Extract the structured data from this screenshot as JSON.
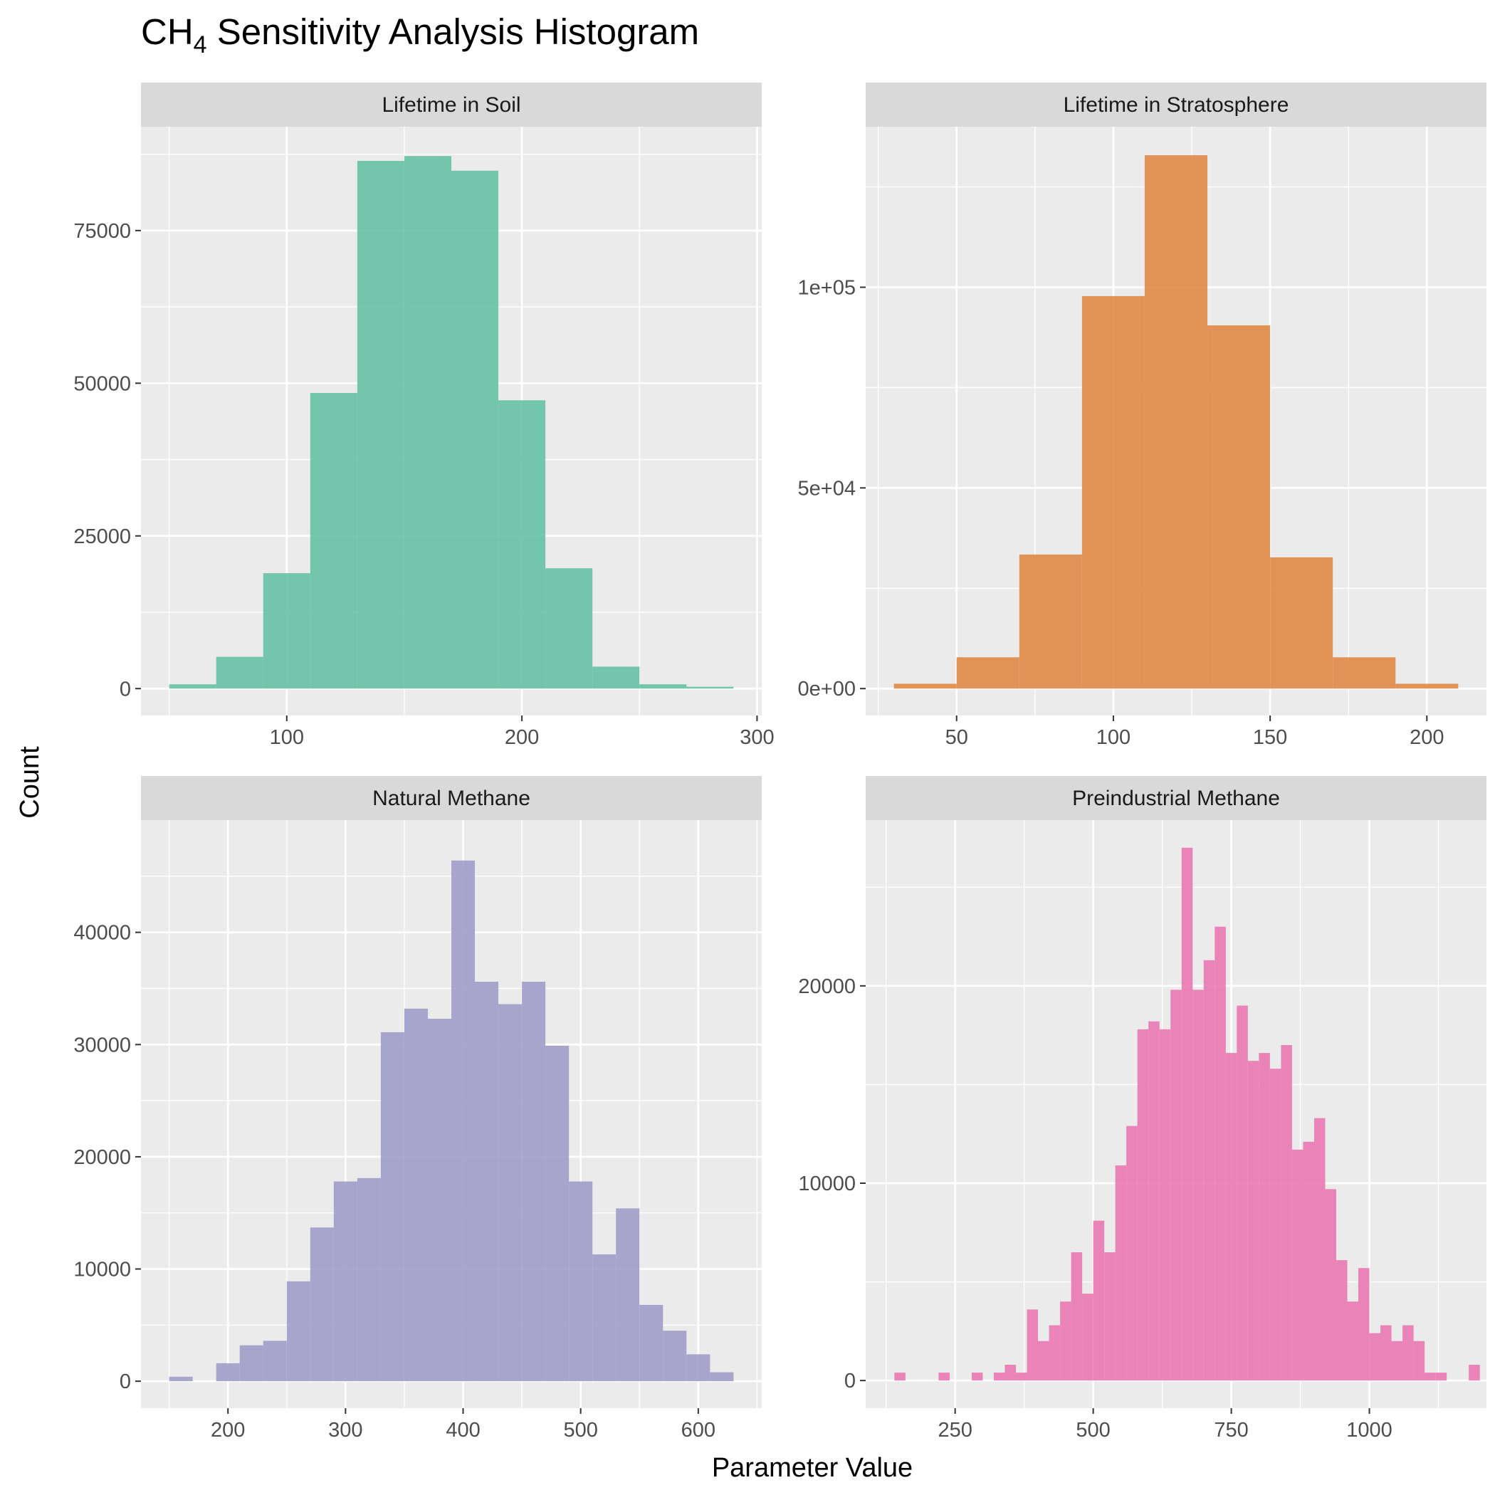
{
  "title_main": "CH",
  "title_sub": "4",
  "title_rest": " Sensitivity Analysis Histogram",
  "xlabel": "Parameter Value",
  "ylabel": "Count",
  "colors": {
    "panel_bg": "#ebebeb",
    "grid": "#ffffff",
    "strip_bg": "#d9d9d9",
    "tick": "#333333"
  },
  "chart_data": [
    {
      "type": "bar",
      "facet": "Lifetime in Soil",
      "color": "#66c2a5",
      "bin_edges": [
        50,
        70,
        90,
        110,
        130,
        150,
        170,
        190,
        210,
        230,
        250,
        270,
        290
      ],
      "values": [
        700,
        5200,
        18900,
        48400,
        86400,
        87200,
        84800,
        47200,
        19700,
        3600,
        700,
        300
      ],
      "xlim": [
        38,
        302
      ],
      "ylim": [
        -4400,
        92000
      ],
      "xticks": [
        100,
        200,
        300
      ],
      "xtick_labels": [
        "100",
        "200",
        "300"
      ],
      "xminor": [
        50,
        150,
        250
      ],
      "yticks": [
        0,
        25000,
        50000,
        75000
      ],
      "ytick_labels": [
        "0",
        "25000",
        "50000",
        "75000"
      ],
      "yminor": [
        12500,
        37500,
        62500,
        87500
      ]
    },
    {
      "type": "bar",
      "facet": "Lifetime in Stratosphere",
      "color": "#e08a47",
      "bin_edges": [
        30,
        50,
        70,
        90,
        110,
        130,
        150,
        170,
        190,
        210
      ],
      "values": [
        1200,
        7800,
        33400,
        97800,
        132900,
        90500,
        32700,
        7800,
        1200
      ],
      "xlim": [
        21,
        219
      ],
      "ylim": [
        -6700,
        140000
      ],
      "xticks": [
        50,
        100,
        150,
        200
      ],
      "xtick_labels": [
        "50",
        "100",
        "150",
        "200"
      ],
      "xminor": [
        25,
        75,
        125,
        175
      ],
      "yticks": [
        0,
        50000,
        100000
      ],
      "ytick_labels": [
        "0e+00",
        "5e+04",
        "1e+05"
      ],
      "yminor": [
        25000,
        75000,
        125000
      ]
    },
    {
      "type": "bar",
      "facet": "Natural Methane",
      "color": "#a09dc8",
      "bin_edges": [
        150,
        170,
        190,
        210,
        230,
        250,
        270,
        290,
        310,
        330,
        350,
        370,
        390,
        410,
        430,
        450,
        470,
        490,
        510,
        530,
        550,
        570,
        590,
        610,
        630
      ],
      "values": [
        400,
        0,
        1600,
        3200,
        3600,
        8900,
        13700,
        17800,
        18100,
        31100,
        33200,
        32300,
        46400,
        35600,
        33600,
        35600,
        29900,
        17800,
        11300,
        15400,
        6800,
        4500,
        2400,
        800
      ],
      "xlim": [
        126,
        654
      ],
      "ylim": [
        -2400,
        50000
      ],
      "xticks": [
        200,
        300,
        400,
        500,
        600
      ],
      "xtick_labels": [
        "200",
        "300",
        "400",
        "500",
        "600"
      ],
      "xminor": [
        150,
        250,
        350,
        450,
        550,
        650
      ],
      "yticks": [
        0,
        10000,
        20000,
        30000,
        40000
      ],
      "ytick_labels": [
        "0",
        "10000",
        "20000",
        "30000",
        "40000"
      ],
      "yminor": [
        5000,
        15000,
        25000,
        35000,
        45000
      ]
    },
    {
      "type": "bar",
      "facet": "Preindustrial Methane",
      "color": "#ea78b1",
      "bin_edges": [
        140,
        160,
        180,
        200,
        220,
        240,
        260,
        280,
        300,
        320,
        340,
        360,
        380,
        400,
        420,
        440,
        460,
        480,
        500,
        520,
        540,
        560,
        580,
        600,
        620,
        640,
        660,
        680,
        700,
        720,
        740,
        760,
        780,
        800,
        820,
        840,
        860,
        880,
        900,
        920,
        940,
        960,
        980,
        1000,
        1020,
        1040,
        1060,
        1080,
        1100,
        1120,
        1140,
        1160,
        1180,
        1200
      ],
      "values": [
        400,
        0,
        0,
        0,
        400,
        0,
        0,
        400,
        0,
        400,
        800,
        400,
        3600,
        2000,
        2800,
        4000,
        6500,
        4400,
        8100,
        6500,
        10900,
        12900,
        17800,
        18200,
        17800,
        19800,
        27000,
        19800,
        21300,
        23000,
        16600,
        19000,
        16200,
        16600,
        15800,
        17000,
        11700,
        12100,
        13300,
        9700,
        6100,
        4000,
        5700,
        2400,
        2800,
        2000,
        2800,
        2000,
        400,
        400,
        0,
        0,
        800
      ],
      "xlim": [
        88,
        1212
      ],
      "ylim": [
        -1400,
        28400
      ],
      "xticks": [
        250,
        500,
        750,
        1000
      ],
      "xtick_labels": [
        "250",
        "500",
        "750",
        "1000"
      ],
      "xminor": [
        125,
        375,
        625,
        875,
        1125
      ],
      "yticks": [
        0,
        10000,
        20000
      ],
      "ytick_labels": [
        "0",
        "10000",
        "20000"
      ],
      "yminor": [
        5000,
        15000,
        25000
      ]
    }
  ]
}
